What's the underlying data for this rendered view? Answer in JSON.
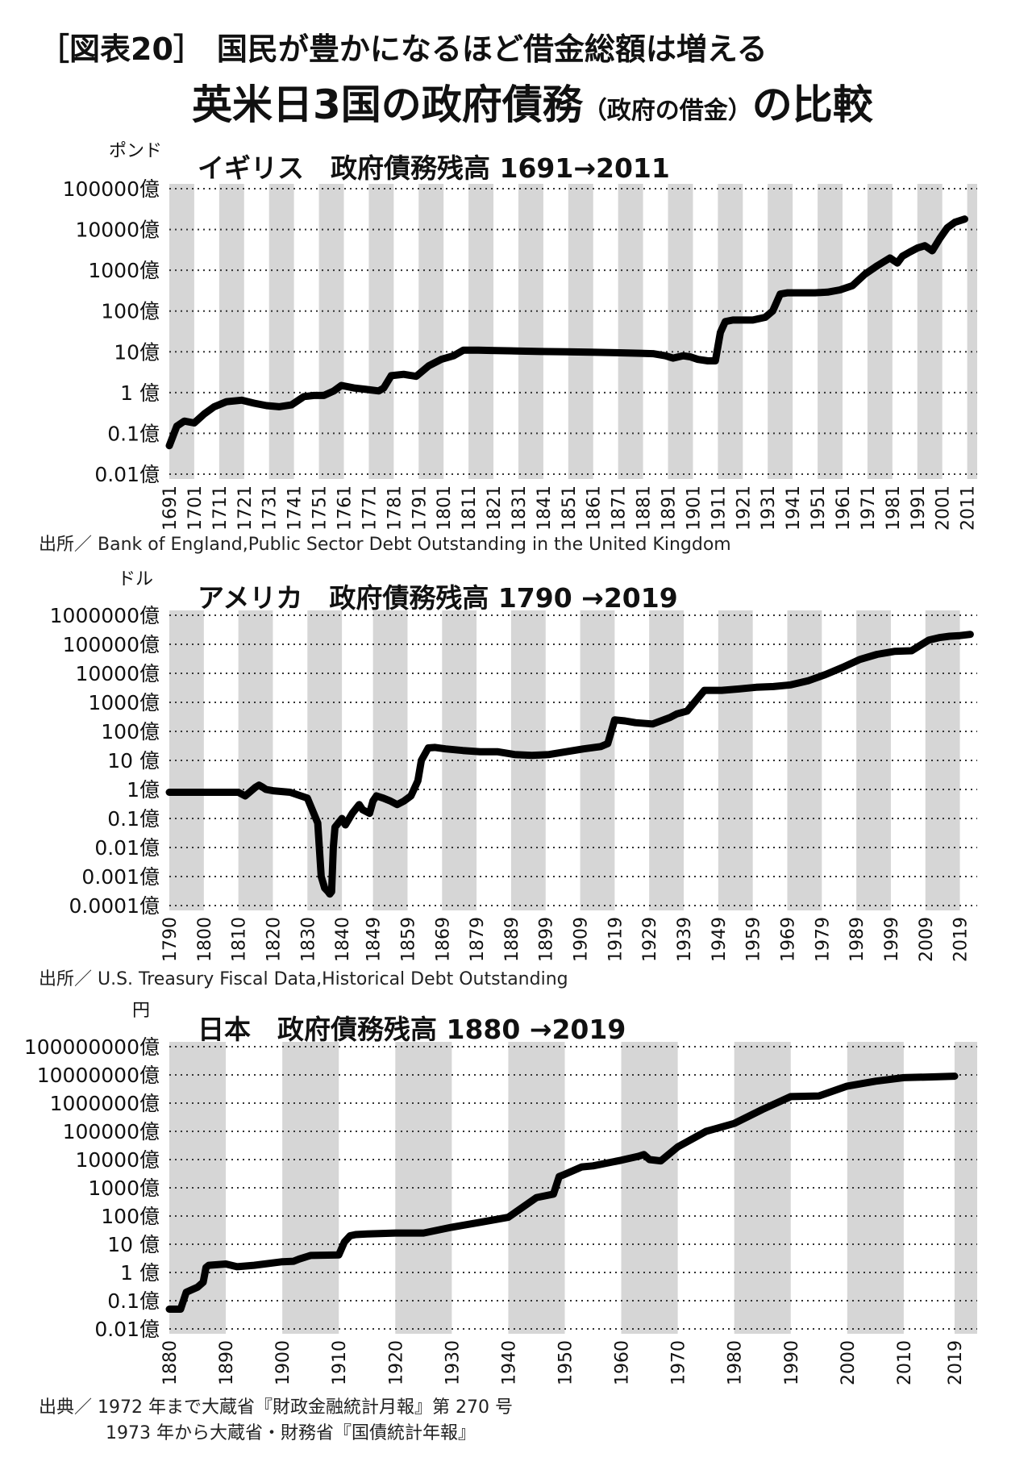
{
  "header": {
    "figure_label": "［図表20］",
    "subtitle": "国民が豊かになるほど借金総額は増える",
    "title_main": "英米日3国の政府債務",
    "title_paren": "（政府の借金）",
    "title_end": "の比較"
  },
  "chart_data": [
    {
      "type": "line",
      "title": "イギリス　政府債務残高 1691→2011",
      "ylabel": "ポンド",
      "y_scale": "log",
      "ylim": [
        0.01,
        100000
      ],
      "y_ticks": [
        {
          "v": 0.01,
          "label": "0.01億"
        },
        {
          "v": 0.1,
          "label": "0.1億"
        },
        {
          "v": 1,
          "label": "1 億"
        },
        {
          "v": 10,
          "label": "10億"
        },
        {
          "v": 100,
          "label": "100億"
        },
        {
          "v": 1000,
          "label": "1000億"
        },
        {
          "v": 10000,
          "label": "10000億"
        },
        {
          "v": 100000,
          "label": "100000億"
        }
      ],
      "x_range": [
        1691,
        2015
      ],
      "x_ticks": [
        "1691",
        "1701",
        "1711",
        "1721",
        "1731",
        "1741",
        "1751",
        "1761",
        "1771",
        "1781",
        "1791",
        "1801",
        "1811",
        "1821",
        "1831",
        "1841",
        "1851",
        "1861",
        "1871",
        "1881",
        "1891",
        "1901",
        "1911",
        "1921",
        "1931",
        "1941",
        "1951",
        "1961",
        "1971",
        "1981",
        "1991",
        "2001",
        "2011"
      ],
      "source": "出所／ Bank of England,Public Sector Debt Outstanding in the United Kingdom",
      "series": [
        {
          "x": [
            1691,
            1694,
            1697,
            1701,
            1705,
            1709,
            1714,
            1720,
            1725,
            1730,
            1735,
            1740,
            1745,
            1749,
            1753,
            1757,
            1760,
            1765,
            1770,
            1775,
            1777,
            1780,
            1785,
            1790,
            1795,
            1800,
            1805,
            1809,
            1815,
            1820,
            1830,
            1840,
            1850,
            1860,
            1870,
            1880,
            1885,
            1890,
            1893,
            1897,
            1900,
            1903,
            1907,
            1910,
            1912,
            1914,
            1917,
            1920,
            1925,
            1930,
            1933,
            1936,
            1939,
            1941,
            1945,
            1950,
            1955,
            1960,
            1965,
            1970,
            1975,
            1980,
            1983,
            1985,
            1988,
            1991,
            1994,
            1997,
            2000,
            2003,
            2006,
            2010
          ],
          "y": [
            0.05,
            0.15,
            0.2,
            0.18,
            0.3,
            0.45,
            0.6,
            0.65,
            0.55,
            0.48,
            0.45,
            0.5,
            0.8,
            0.85,
            0.85,
            1.1,
            1.5,
            1.3,
            1.2,
            1.1,
            1.3,
            2.6,
            2.8,
            2.5,
            4.5,
            6.5,
            8,
            11,
            11,
            10.8,
            10.5,
            10.2,
            10,
            9.8,
            9.5,
            9.2,
            9,
            8,
            7,
            8,
            7.5,
            6.5,
            6,
            6,
            30,
            55,
            60,
            60,
            60,
            70,
            100,
            260,
            280,
            280,
            280,
            280,
            290,
            330,
            420,
            800,
            1300,
            2000,
            1500,
            2200,
            2800,
            3500,
            4000,
            3000,
            6000,
            11000,
            15000,
            18000
          ]
        }
      ]
    },
    {
      "type": "line",
      "title": "アメリカ　政府債務残高 1790 →2019",
      "ylabel": "ドル",
      "y_scale": "log",
      "ylim": [
        0.0001,
        1000000
      ],
      "y_ticks": [
        {
          "v": 0.0001,
          "label": "0.0001億"
        },
        {
          "v": 0.001,
          "label": "0.001億"
        },
        {
          "v": 0.01,
          "label": "0.01億"
        },
        {
          "v": 0.1,
          "label": "0.1億"
        },
        {
          "v": 1,
          "label": "1億"
        },
        {
          "v": 10,
          "label": "10 億"
        },
        {
          "v": 100,
          "label": "100億"
        },
        {
          "v": 1000,
          "label": "1000億"
        },
        {
          "v": 10000,
          "label": "10000億"
        },
        {
          "v": 100000,
          "label": "100000億"
        },
        {
          "v": 1000000,
          "label": "1000000億"
        }
      ],
      "x_range": [
        1790,
        2024
      ],
      "x_ticks": [
        "1790",
        "1800",
        "1810",
        "1820",
        "1830",
        "1840",
        "1849",
        "1859",
        "1869",
        "1879",
        "1889",
        "1899",
        "1909",
        "1919",
        "1929",
        "1939",
        "1949",
        "1959",
        "1969",
        "1979",
        "1989",
        "1999",
        "2009",
        "2019"
      ],
      "source": "出所／ U.S. Treasury Fiscal Data,Historical Debt Outstanding",
      "series": [
        {
          "x": [
            1790,
            1795,
            1800,
            1805,
            1810,
            1812,
            1815,
            1816,
            1817,
            1818,
            1820,
            1825,
            1830,
            1833,
            1834,
            1835,
            1836,
            1836.5,
            1837,
            1837.5,
            1838,
            1840,
            1841,
            1843,
            1845,
            1846,
            1848,
            1849,
            1850,
            1852,
            1854,
            1856,
            1858,
            1860,
            1862,
            1863,
            1865,
            1867,
            1870,
            1875,
            1880,
            1885,
            1890,
            1895,
            1900,
            1905,
            1910,
            1915,
            1917,
            1919,
            1922,
            1925,
            1930,
            1935,
            1937,
            1940,
            1945,
            1950,
            1955,
            1960,
            1965,
            1970,
            1975,
            1980,
            1985,
            1990,
            1995,
            2000,
            2005,
            2008,
            2010,
            2013,
            2016,
            2019,
            2022
          ],
          "y": [
            0.8,
            0.8,
            0.8,
            0.8,
            0.8,
            0.6,
            1.2,
            1.4,
            1.2,
            1,
            0.9,
            0.8,
            0.5,
            0.07,
            0.001,
            0.0004,
            0.0003,
            0.00025,
            0.0003,
            0.01,
            0.05,
            0.1,
            0.06,
            0.15,
            0.3,
            0.2,
            0.15,
            0.4,
            0.6,
            0.5,
            0.4,
            0.3,
            0.4,
            0.6,
            2,
            10,
            27,
            28,
            25,
            22,
            20,
            20,
            16,
            15,
            16,
            20,
            25,
            30,
            38,
            250,
            230,
            200,
            180,
            300,
            400,
            500,
            2600,
            2600,
            2900,
            3300,
            3500,
            4000,
            5500,
            9000,
            16000,
            30000,
            45000,
            57000,
            60000,
            100000,
            140000,
            170000,
            190000,
            200000,
            220000
          ]
        }
      ]
    },
    {
      "type": "line",
      "title": "日本　政府債務残高 1880 →2019",
      "ylabel": "円",
      "y_scale": "log",
      "ylim": [
        0.01,
        100000000
      ],
      "y_ticks": [
        {
          "v": 0.01,
          "label": "0.01億"
        },
        {
          "v": 0.1,
          "label": "0.1億"
        },
        {
          "v": 1,
          "label": "1 億"
        },
        {
          "v": 10,
          "label": "10 億"
        },
        {
          "v": 100,
          "label": "100億"
        },
        {
          "v": 1000,
          "label": "1000億"
        },
        {
          "v": 10000,
          "label": "10000億"
        },
        {
          "v": 100000,
          "label": "100000億"
        },
        {
          "v": 1000000,
          "label": "1000000億"
        },
        {
          "v": 10000000,
          "label": "10000000億"
        },
        {
          "v": 100000000,
          "label": "100000000億"
        }
      ],
      "x_range": [
        1880,
        2023
      ],
      "x_ticks": [
        "1880",
        "1890",
        "1900",
        "1910",
        "1920",
        "1930",
        "1940",
        "1950",
        "1960",
        "1970",
        "1980",
        "1990",
        "2000",
        "2010",
        "2019"
      ],
      "source_line1": "出典／ 1972 年まで大蔵省『財政金融統計月報』第 270 号",
      "source_line2": "1973 年から大蔵省・財務省『国債統計年報』",
      "series": [
        {
          "x": [
            1880,
            1881,
            1882,
            1883,
            1885,
            1886,
            1886.5,
            1887,
            1890,
            1892,
            1895,
            1900,
            1902,
            1903,
            1905,
            1910,
            1911,
            1912,
            1913,
            1915,
            1920,
            1925,
            1930,
            1935,
            1940,
            1945,
            1948,
            1949,
            1950,
            1953,
            1955,
            1960,
            1963,
            1964,
            1965,
            1967,
            1970,
            1975,
            1980,
            1985,
            1990,
            1995,
            2000,
            2005,
            2010,
            2015,
            2019
          ],
          "y": [
            0.05,
            0.05,
            0.05,
            0.2,
            0.3,
            0.45,
            1.5,
            1.8,
            2,
            1.6,
            1.8,
            2.4,
            2.5,
            3,
            4,
            4.2,
            12,
            20,
            22,
            23,
            25,
            25,
            40,
            60,
            90,
            450,
            600,
            2500,
            3000,
            5500,
            6000,
            9500,
            13000,
            15000,
            10000,
            9000,
            28000,
            100000,
            190000,
            600000,
            1700000,
            1800000,
            4000000,
            6000000,
            8000000,
            8500000,
            9000000
          ]
        }
      ]
    }
  ]
}
